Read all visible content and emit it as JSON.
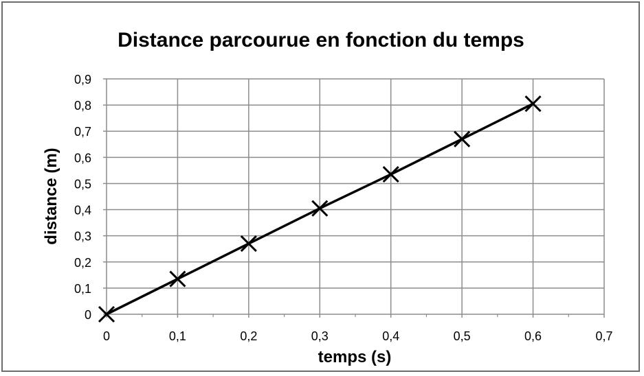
{
  "chart_data": {
    "type": "scatter",
    "title": "Distance parcourue en fonction du temps",
    "xlabel": "temps (s)",
    "ylabel": "distance (m)",
    "xlim": [
      0,
      0.7
    ],
    "ylim": [
      0,
      0.9
    ],
    "x_ticks": [
      "0",
      "0,1",
      "0,2",
      "0,3",
      "0,4",
      "0,5",
      "0,6",
      "0,7"
    ],
    "y_ticks": [
      "0",
      "0,1",
      "0,2",
      "0,3",
      "0,4",
      "0,5",
      "0,6",
      "0,7",
      "0,8",
      "0,9"
    ],
    "grid": true,
    "marker": "x",
    "line": "straight",
    "legend": "none",
    "series": [
      {
        "x": [
          0,
          0.1,
          0.2,
          0.3,
          0.4,
          0.5,
          0.6
        ],
        "y": [
          0,
          0.135,
          0.27,
          0.405,
          0.535,
          0.67,
          0.805
        ]
      }
    ],
    "colors": {
      "series": "#000000",
      "grid": "#8c8c8c",
      "axis": "#8c8c8c"
    }
  }
}
